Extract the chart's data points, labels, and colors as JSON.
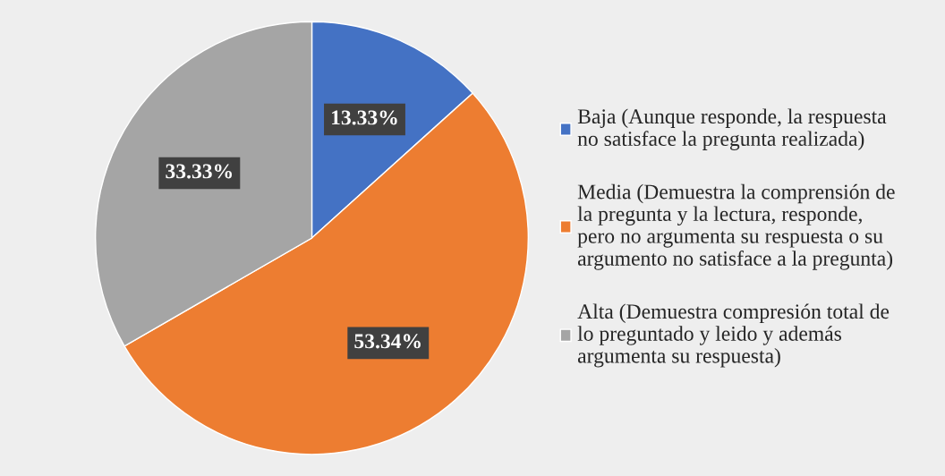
{
  "chart_data": {
    "type": "pie",
    "categories": [
      "Baja (Aunque responde, la respuesta no satisface la pregunta realizada)",
      "Media (Demuestra la comprensión de la pregunta y la lectura, responde, pero no argumenta su respuesta o su argumento no satisface a la pregunta)",
      "Alta (Demuestra compresión total de lo preguntado y leido y además argumenta su respuesta)"
    ],
    "values": [
      13.33,
      53.34,
      33.33
    ],
    "colors": [
      "#4472c4",
      "#ed7d31",
      "#a5a5a5"
    ],
    "value_labels": [
      "13.33%",
      "53.34%",
      "33.33%"
    ],
    "legend": "right"
  }
}
